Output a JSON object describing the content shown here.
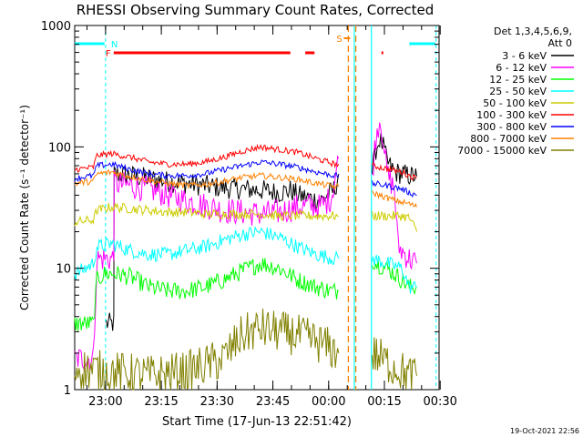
{
  "chart_data": {
    "type": "line",
    "title": "RHESSI Observing Summary Count Rates, Corrected",
    "xlabel": "Start Time (17-Jun-13 22:51:42)",
    "ylabel": "Corrected Count Rate (s⁻¹ detector⁻¹)",
    "x_unit": "minutes since 22:51:42",
    "xlim": [
      0,
      98
    ],
    "ylim": [
      1,
      1000
    ],
    "yscale": "log",
    "x_ticks": [
      {
        "t": 8.3,
        "label": "23:00"
      },
      {
        "t": 23.3,
        "label": "23:15"
      },
      {
        "t": 38.3,
        "label": "23:30"
      },
      {
        "t": 53.3,
        "label": "23:45"
      },
      {
        "t": 68.3,
        "label": "00:00"
      },
      {
        "t": 83.3,
        "label": "00:15"
      },
      {
        "t": 98.3,
        "label": "00:30"
      }
    ],
    "y_ticks": [
      {
        "v": 1,
        "label": "1"
      },
      {
        "v": 10,
        "label": "10"
      },
      {
        "v": 100,
        "label": "100"
      },
      {
        "v": 1000,
        "label": "1000"
      }
    ],
    "legend": {
      "header": [
        "Det 1,3,4,5,6,9,",
        "Att 0"
      ],
      "placement": "right"
    },
    "series": [
      {
        "name": "3 - 6 keV",
        "color": "#000000",
        "segments": [
          [
            [
              8.5,
              3.5
            ],
            [
              10.5,
              3.5
            ],
            [
              10.6,
              60
            ],
            [
              15,
              58
            ],
            [
              20,
              55
            ],
            [
              25,
              52
            ],
            [
              30,
              50
            ],
            [
              35,
              48
            ],
            [
              40,
              46
            ],
            [
              45,
              45
            ],
            [
              50,
              44
            ],
            [
              55,
              42
            ],
            [
              58,
              44
            ],
            [
              60,
              40
            ],
            [
              63,
              38
            ],
            [
              66,
              36
            ],
            [
              68,
              40
            ],
            [
              70,
              45
            ],
            [
              71,
              60
            ]
          ],
          [
            [
              80,
              62
            ],
            [
              81,
              95
            ],
            [
              82,
              115
            ],
            [
              83,
              100
            ],
            [
              84,
              75
            ],
            [
              86,
              62
            ],
            [
              90,
              58
            ],
            [
              92,
              57
            ]
          ]
        ]
      },
      {
        "name": "6 - 12 keV",
        "color": "#ff00ff",
        "segments": [
          [
            [
              0,
              1.8
            ],
            [
              5,
              1.8
            ],
            [
              6,
              12
            ],
            [
              9,
              12
            ],
            [
              10.5,
              12
            ],
            [
              10.6,
              50
            ],
            [
              15,
              48
            ],
            [
              20,
              45
            ],
            [
              25,
              40
            ],
            [
              30,
              36
            ],
            [
              35,
              33
            ],
            [
              40,
              30
            ],
            [
              45,
              29
            ],
            [
              50,
              28
            ],
            [
              55,
              29
            ],
            [
              60,
              32
            ],
            [
              63,
              33
            ],
            [
              66,
              32
            ],
            [
              69,
              38
            ],
            [
              71,
              80
            ]
          ],
          [
            [
              80,
              60
            ],
            [
              81,
              120
            ],
            [
              82,
              170
            ],
            [
              83,
              120
            ],
            [
              84,
              60
            ],
            [
              86,
              45
            ],
            [
              87,
              15
            ],
            [
              90,
              12
            ],
            [
              92,
              11
            ]
          ]
        ]
      },
      {
        "name": "12 - 25 keV",
        "color": "#00ff00",
        "segments": [
          [
            [
              0,
              3.5
            ],
            [
              5,
              3.5
            ],
            [
              6,
              8
            ],
            [
              8,
              9
            ],
            [
              10,
              9
            ],
            [
              11,
              9
            ],
            [
              15,
              8.5
            ],
            [
              20,
              7
            ],
            [
              25,
              6.5
            ],
            [
              30,
              6.5
            ],
            [
              35,
              7
            ],
            [
              40,
              8
            ],
            [
              45,
              9.5
            ],
            [
              50,
              11
            ],
            [
              55,
              10
            ],
            [
              60,
              8
            ],
            [
              65,
              7
            ],
            [
              69,
              6.5
            ],
            [
              71,
              6.5
            ]
          ],
          [
            [
              80,
              12
            ],
            [
              81,
              11
            ],
            [
              84,
              10
            ],
            [
              86,
              9
            ],
            [
              88,
              8
            ],
            [
              90,
              7
            ],
            [
              92,
              7
            ]
          ]
        ]
      },
      {
        "name": "25 - 50 keV",
        "color": "#00ffff",
        "segments": [
          [
            [
              0,
              9
            ],
            [
              3,
              10
            ],
            [
              5,
              11
            ],
            [
              6,
              15
            ],
            [
              10,
              16
            ],
            [
              15,
              14
            ],
            [
              20,
              13
            ],
            [
              25,
              13
            ],
            [
              30,
              14
            ],
            [
              35,
              15
            ],
            [
              40,
              17
            ],
            [
              45,
              19
            ],
            [
              50,
              20
            ],
            [
              55,
              18
            ],
            [
              60,
              15
            ],
            [
              65,
              13
            ],
            [
              70,
              12
            ],
            [
              71,
              12
            ]
          ],
          [
            [
              80,
              12
            ],
            [
              84,
              11
            ],
            [
              88,
              10
            ],
            [
              90,
              7
            ],
            [
              92,
              7
            ]
          ]
        ]
      },
      {
        "name": "50 - 100 keV",
        "color": "#cccc00",
        "segments": [
          [
            [
              0,
              24
            ],
            [
              5,
              25
            ],
            [
              6,
              30
            ],
            [
              10,
              32
            ],
            [
              15,
              31
            ],
            [
              20,
              30
            ],
            [
              25,
              29
            ],
            [
              30,
              29
            ],
            [
              35,
              28
            ],
            [
              40,
              28
            ],
            [
              45,
              28
            ],
            [
              50,
              28
            ],
            [
              55,
              27
            ],
            [
              60,
              27
            ],
            [
              65,
              27
            ],
            [
              70,
              27
            ],
            [
              71,
              27
            ]
          ],
          [
            [
              80,
              27
            ],
            [
              84,
              27
            ],
            [
              88,
              27
            ],
            [
              90,
              26
            ],
            [
              92,
              20
            ]
          ]
        ]
      },
      {
        "name": "100 - 300 keV",
        "color": "#ff0000",
        "segments": [
          [
            [
              0,
              65
            ],
            [
              5,
              68
            ],
            [
              6,
              85
            ],
            [
              10,
              88
            ],
            [
              15,
              82
            ],
            [
              20,
              75
            ],
            [
              25,
              72
            ],
            [
              30,
              72
            ],
            [
              35,
              75
            ],
            [
              40,
              82
            ],
            [
              45,
              92
            ],
            [
              50,
              100
            ],
            [
              55,
              95
            ],
            [
              60,
              90
            ],
            [
              65,
              80
            ],
            [
              70,
              72
            ],
            [
              71,
              72
            ]
          ],
          [
            [
              80,
              70
            ],
            [
              84,
              66
            ],
            [
              88,
              62
            ],
            [
              90,
              58
            ],
            [
              92,
              55
            ]
          ]
        ]
      },
      {
        "name": "300 - 800 keV",
        "color": "#0000ff",
        "segments": [
          [
            [
              0,
              55
            ],
            [
              5,
              58
            ],
            [
              6,
              70
            ],
            [
              10,
              72
            ],
            [
              15,
              65
            ],
            [
              20,
              60
            ],
            [
              25,
              58
            ],
            [
              30,
              58
            ],
            [
              35,
              60
            ],
            [
              40,
              65
            ],
            [
              45,
              70
            ],
            [
              50,
              75
            ],
            [
              55,
              72
            ],
            [
              60,
              68
            ],
            [
              65,
              62
            ],
            [
              70,
              58
            ],
            [
              71,
              58
            ]
          ],
          [
            [
              80,
              50
            ],
            [
              84,
              48
            ],
            [
              88,
              45
            ],
            [
              90,
              42
            ],
            [
              92,
              40
            ]
          ]
        ]
      },
      {
        "name": "800 - 7000 keV",
        "color": "#ff8000",
        "segments": [
          [
            [
              0,
              50
            ],
            [
              5,
              52
            ],
            [
              6,
              60
            ],
            [
              10,
              62
            ],
            [
              15,
              57
            ],
            [
              20,
              53
            ],
            [
              25,
              50
            ],
            [
              30,
              48
            ],
            [
              35,
              49
            ],
            [
              40,
              52
            ],
            [
              45,
              56
            ],
            [
              50,
              58
            ],
            [
              55,
              56
            ],
            [
              60,
              54
            ],
            [
              65,
              50
            ],
            [
              70,
              47
            ],
            [
              71,
              47
            ]
          ],
          [
            [
              80,
              42
            ],
            [
              84,
              38
            ],
            [
              88,
              35
            ],
            [
              90,
              34
            ],
            [
              92,
              32
            ]
          ]
        ]
      },
      {
        "name": "7000 - 15000 keV",
        "color": "#808000",
        "segments": [
          [
            [
              0,
              1.5
            ],
            [
              10,
              1.4
            ],
            [
              20,
              1.3
            ],
            [
              30,
              1.4
            ],
            [
              40,
              1.8
            ],
            [
              45,
              2.8
            ],
            [
              50,
              3.2
            ],
            [
              55,
              3.0
            ],
            [
              60,
              2.8
            ],
            [
              65,
              2.5
            ],
            [
              71,
              2.0
            ]
          ],
          [
            [
              80,
              2.0
            ],
            [
              85,
              1.6
            ],
            [
              90,
              1.3
            ],
            [
              92,
              1.3
            ]
          ]
        ]
      }
    ],
    "annotations": {
      "night_label": "N",
      "flare_label": "F",
      "saa_label": "S",
      "night_color": "#00ffff",
      "flare_color": "#ff0000",
      "saa_color": "#ff8000",
      "night_intervals": [
        [
          0,
          8
        ],
        [
          90,
          97
        ]
      ],
      "night_boundaries": [
        8.3,
        97.2
      ],
      "flare_intervals": [
        [
          10.5,
          58
        ],
        [
          62,
          64.5
        ],
        [
          82.5,
          83
        ]
      ],
      "saa_boundaries": [
        73.6,
        75.6
      ],
      "data_gap_boundaries": [
        75.2,
        79.8
      ]
    }
  },
  "timestamp": "19-Oct-2021 22:56"
}
